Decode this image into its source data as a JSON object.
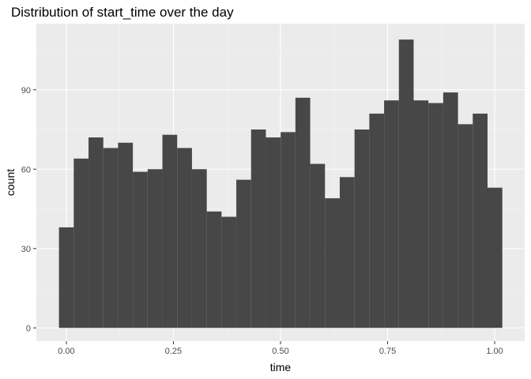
{
  "chart_data": {
    "type": "bar",
    "title": "Distribution of start_time over the day",
    "xlabel": "time",
    "ylabel": "count",
    "xlim": [
      -0.07,
      1.07
    ],
    "ylim": [
      -5,
      115
    ],
    "x_ticks": [
      0.0,
      0.25,
      0.5,
      0.75,
      1.0
    ],
    "x_tick_labels": [
      "0.00",
      "0.25",
      "0.50",
      "0.75",
      "1.00"
    ],
    "y_ticks": [
      0,
      30,
      60,
      90
    ],
    "y_tick_labels": [
      "0",
      "30",
      "60",
      "90"
    ],
    "bin_width": 0.0345,
    "bin_start": -0.0172,
    "values": [
      38,
      64,
      72,
      68,
      70,
      59,
      60,
      73,
      68,
      60,
      44,
      42,
      56,
      75,
      72,
      74,
      87,
      62,
      49,
      57,
      75,
      81,
      86,
      109,
      86,
      85,
      89,
      77,
      81,
      53
    ],
    "grid": true,
    "legend": "none",
    "colors": {
      "bar": "#474747",
      "panel_background": "#ebebeb",
      "grid_major": "#ffffff",
      "grid_minor": "#f5f5f5"
    }
  }
}
